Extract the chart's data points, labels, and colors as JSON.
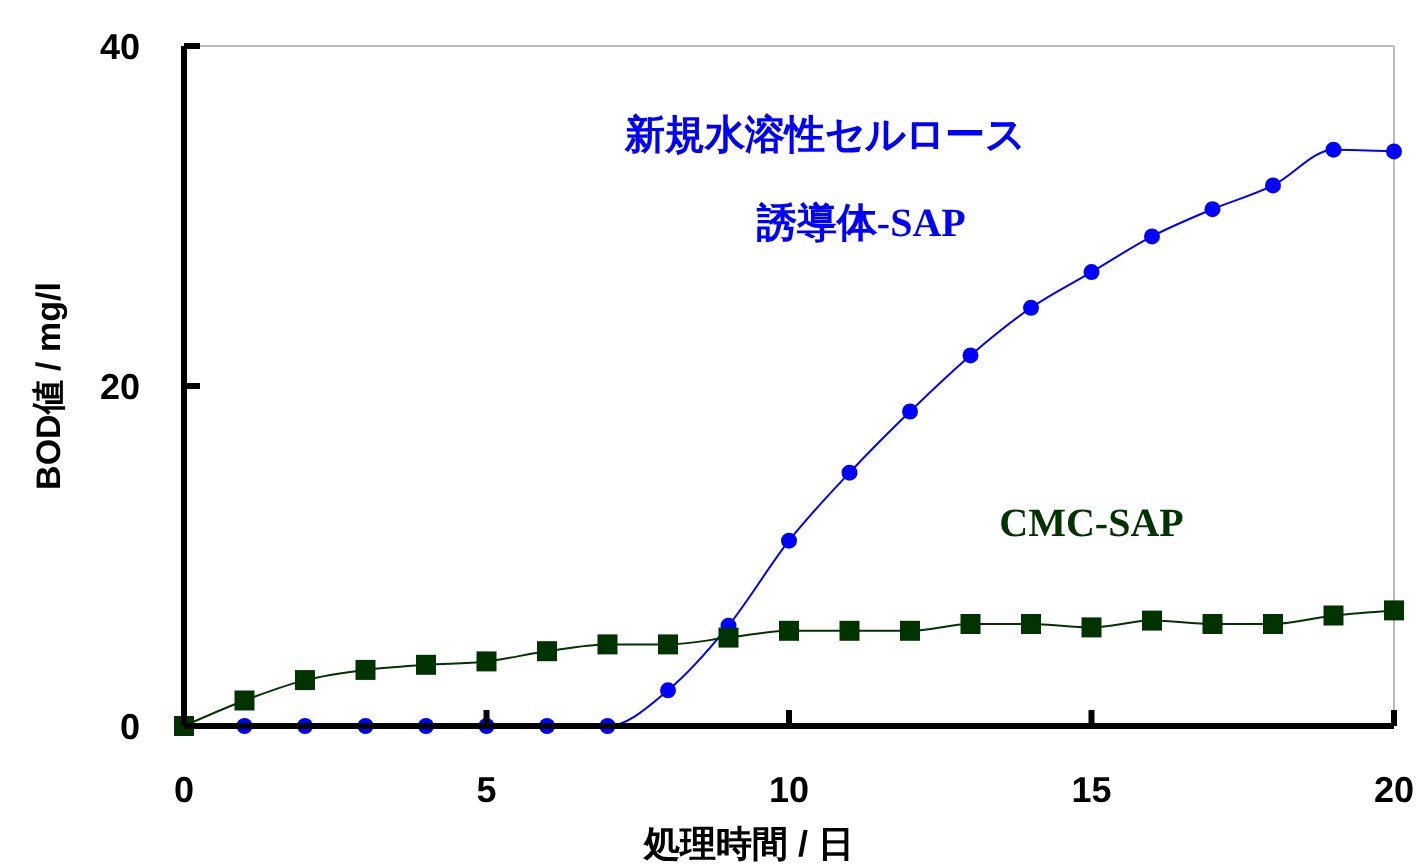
{
  "chart_data": {
    "type": "line",
    "xlabel": "処理時間 / 日",
    "ylabel": "BOD値 / mg/l",
    "x": [
      0,
      1,
      2,
      3,
      4,
      5,
      6,
      7,
      8,
      9,
      10,
      11,
      12,
      13,
      14,
      15,
      16,
      17,
      18,
      19,
      20
    ],
    "xlim": [
      0,
      20
    ],
    "xticks": [
      0,
      5,
      10,
      15,
      20
    ],
    "ylim": [
      0,
      40
    ],
    "yticks": [
      0,
      20,
      40
    ],
    "grid": false,
    "series": [
      {
        "name": "新規水溶性セルロース誘導体-SAP",
        "color": "#0000ff",
        "marker": "circle",
        "values": [
          0,
          0,
          0,
          0,
          0,
          0,
          0,
          0,
          2.1,
          5.9,
          10.9,
          14.9,
          18.5,
          21.8,
          24.6,
          26.7,
          28.8,
          30.4,
          31.8,
          33.9,
          33.8
        ]
      },
      {
        "name": "CMC-SAP",
        "color": "#003300",
        "marker": "square",
        "values": [
          0,
          1.5,
          2.7,
          3.3,
          3.6,
          3.8,
          4.4,
          4.8,
          4.8,
          5.2,
          5.6,
          5.6,
          5.6,
          6.0,
          6.0,
          5.8,
          6.2,
          6.0,
          6.0,
          6.5,
          6.8
        ]
      }
    ]
  }
}
